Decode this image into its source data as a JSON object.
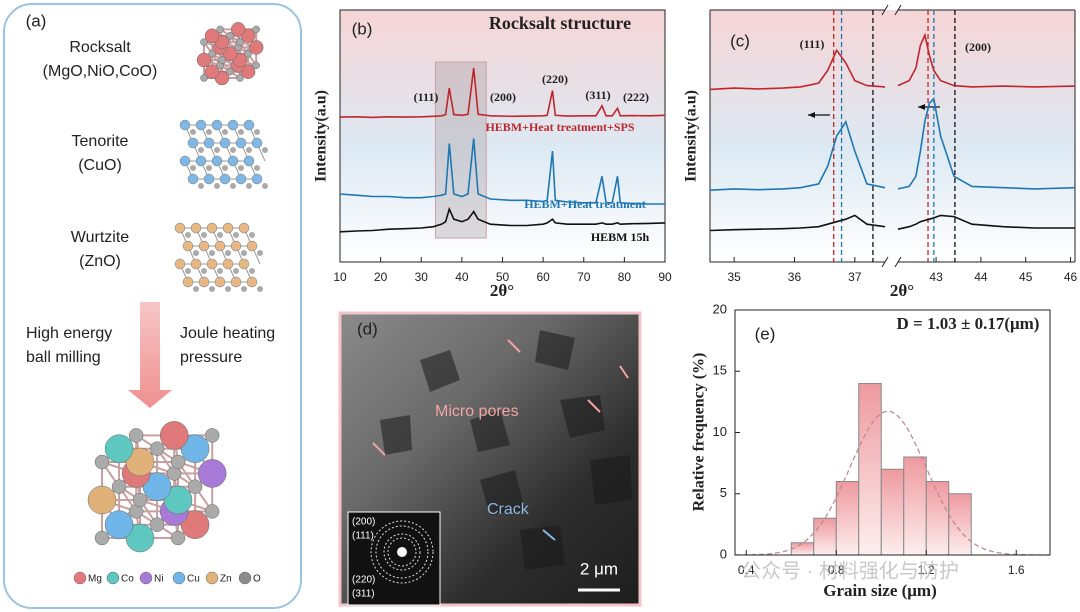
{
  "panel_a": {
    "label": "(a)",
    "phases": [
      {
        "name": "Rocksalt",
        "formula": "(MgO,NiO,CoO)"
      },
      {
        "name": "Tenorite",
        "formula": "(CuO)"
      },
      {
        "name": "Wurtzite",
        "formula": "(ZnO)"
      }
    ],
    "process_left": [
      "High energy",
      "ball milling"
    ],
    "process_right": [
      "Joule heating",
      "pressure"
    ],
    "elements": [
      "Mg",
      "Co",
      "Ni",
      "Cu",
      "Zn",
      "O"
    ]
  },
  "panel_d": {
    "label": "(d)",
    "pores": "Micro pores",
    "crack": "Crack",
    "scale": "2 μm",
    "rings": [
      "(200)",
      "(111)",
      "(220)",
      "(311)"
    ]
  },
  "watermark": "公众号 · 材料强化与防护",
  "chart_data": [
    {
      "type": "line",
      "panel_label": "(b)",
      "title": "Rocksalt structure",
      "x_label": "2θ°",
      "y_label": "Intensity(a.u)",
      "x": [
        10,
        14,
        18,
        22,
        26,
        30,
        33,
        35,
        36,
        36.9,
        38,
        40,
        41.5,
        42.9,
        44,
        47,
        52,
        56,
        60,
        61,
        62.3,
        63,
        66,
        70,
        73,
        74.5,
        75.5,
        77,
        78.3,
        79,
        82,
        86,
        90
      ],
      "xlim": [
        10,
        90
      ],
      "xticks": [
        10,
        20,
        30,
        40,
        50,
        60,
        70,
        80,
        90
      ],
      "ylim": [
        0,
        100
      ],
      "highlight_xlim": [
        33.5,
        46
      ],
      "peak_labels": [
        "(111)",
        "(200)",
        "(220)",
        "(311)",
        "(222)"
      ],
      "series": [
        {
          "name": "HEBM+Heat treatment+SPS",
          "color": "#c0272d",
          "values": [
            57.5,
            57.6,
            57.4,
            57.6,
            57.5,
            57.6,
            57.8,
            58,
            58.5,
            69,
            58.5,
            58.2,
            58.6,
            77,
            58.6,
            58,
            57.8,
            57.9,
            58,
            58.2,
            68,
            58.2,
            57.9,
            58,
            58,
            62,
            58,
            58,
            61,
            58,
            58.1,
            58,
            58.2
          ]
        },
        {
          "name": "HEBM+Heat treatment",
          "color": "#1f78b4",
          "values": [
            27,
            26.5,
            26,
            26,
            25.5,
            25.5,
            26,
            26.5,
            27,
            47,
            27,
            26,
            27,
            49,
            27,
            25,
            24.5,
            24.5,
            24,
            24.5,
            44,
            24.5,
            23.8,
            23.5,
            23.5,
            34,
            23.5,
            23.5,
            34,
            23.5,
            23.2,
            23,
            23
          ]
        },
        {
          "name": "HEBM 15h",
          "color": "#111111",
          "values": [
            12,
            12.3,
            12.5,
            13,
            13.2,
            13.5,
            14,
            15,
            16,
            21,
            17,
            16,
            17,
            20,
            17,
            15,
            14.5,
            14.5,
            15,
            15.5,
            17,
            15.5,
            15,
            15,
            15,
            15.5,
            15,
            15,
            15.5,
            15,
            15.2,
            15.3,
            15.5
          ]
        }
      ]
    },
    {
      "type": "line",
      "panel_label": "(c)",
      "x_label": "2θ°",
      "y_label": "Intensity(a.u)",
      "x": [
        34.6,
        35,
        35.4,
        35.8,
        36.1,
        36.4,
        36.55,
        36.7,
        36.85,
        37.0,
        37.2,
        37.5
      ],
      "xlim": [
        34.6,
        37.5
      ],
      "xticks": [
        35,
        36,
        37
      ],
      "ylim": [
        0,
        100
      ],
      "peak_labels": [
        "(111)"
      ],
      "vlines": [
        {
          "x": 36.65,
          "color": "#c0272d"
        },
        {
          "x": 36.78,
          "color": "#1f78b4"
        },
        {
          "x": 37.3,
          "color": "#111111"
        }
      ],
      "series": [
        {
          "color": "#c0272d",
          "values": [
            68.5,
            69,
            68.7,
            69,
            69.5,
            71,
            76,
            84,
            79,
            72,
            70,
            69.5
          ]
        },
        {
          "color": "#1f78b4",
          "values": [
            28.5,
            29,
            28.7,
            29,
            29.5,
            31,
            38,
            50,
            55.6,
            44,
            31,
            29.5
          ]
        },
        {
          "color": "#111111",
          "values": [
            12.5,
            12.8,
            13,
            13.2,
            13.5,
            14,
            15,
            16,
            17,
            18.5,
            15,
            14
          ]
        }
      ]
    },
    {
      "type": "line",
      "x": [
        42.15,
        42.4,
        42.55,
        42.65,
        42.75,
        42.85,
        42.95,
        43.1,
        43.4,
        43.8,
        44.5,
        45.2,
        46.1
      ],
      "xlim": [
        42.15,
        46.1
      ],
      "xticks": [
        43,
        44,
        45,
        46
      ],
      "ylim": [
        0,
        100
      ],
      "peak_labels": [
        "(200)"
      ],
      "vlines": [
        {
          "x": 42.82,
          "color": "#c0272d"
        },
        {
          "x": 42.95,
          "color": "#1f78b4"
        },
        {
          "x": 43.42,
          "color": "#111111"
        }
      ],
      "series": [
        {
          "color": "#c0272d",
          "values": [
            70,
            72,
            77,
            86,
            90,
            82,
            76,
            72,
            70,
            69.5,
            69.8,
            69.5,
            69.8
          ]
        },
        {
          "color": "#1f78b4",
          "values": [
            29,
            30,
            34,
            44,
            56,
            63,
            64.8,
            50,
            34,
            30,
            29.5,
            29,
            29.5
          ]
        },
        {
          "color": "#111111",
          "values": [
            13,
            14,
            15,
            16,
            16.5,
            17,
            17.5,
            18.5,
            18,
            15,
            14,
            13.5,
            13.5
          ]
        }
      ]
    },
    {
      "type": "histogram",
      "panel_label": "(e)",
      "annotation": "D = 1.03 ± 0.17(μm)",
      "x_label": "Grain size  (μm)",
      "y_label": "Relative frequency (%)",
      "bins": [
        0.6,
        0.7,
        0.8,
        0.9,
        1.0,
        1.1,
        1.2,
        1.3,
        1.4
      ],
      "values": [
        1,
        3,
        6,
        14,
        7,
        8,
        6,
        5
      ],
      "fit": {
        "mean": 1.03,
        "sd": 0.17
      },
      "xlim": [
        0.35,
        1.75
      ],
      "xticks": [
        0.4,
        0.8,
        1.2,
        1.6
      ],
      "ylim": [
        0,
        20
      ],
      "yticks": [
        0,
        5,
        10,
        15,
        20
      ]
    }
  ]
}
